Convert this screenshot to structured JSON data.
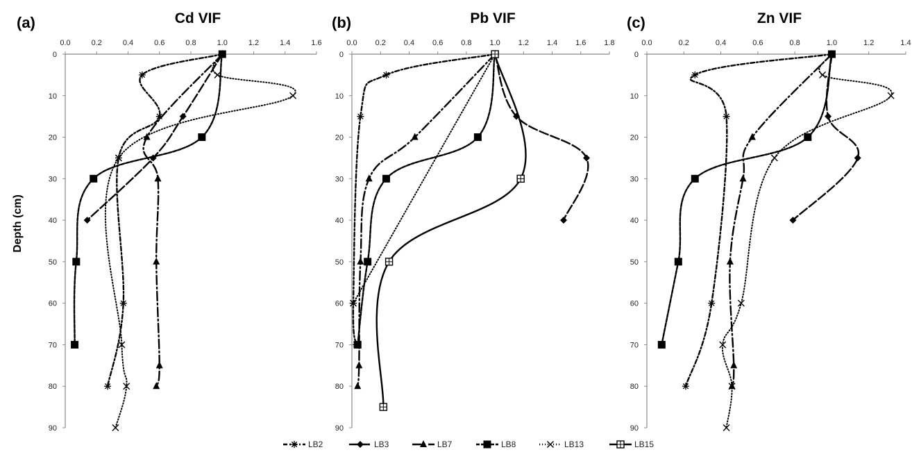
{
  "figure": {
    "ylabel": "Depth (cm)"
  },
  "chart_data": [
    {
      "type": "line",
      "panel_label": "(a)",
      "title": "Cd VIF",
      "xlim": [
        0,
        1.6
      ],
      "xticks": [
        "0.0",
        "0.2",
        "0.4",
        "0.6",
        "0.8",
        "1.0",
        "1.2",
        "1.4",
        "1.6"
      ],
      "ylim": [
        0,
        90
      ],
      "yticks": [
        "0",
        "10",
        "20",
        "30",
        "40",
        "50",
        "60",
        "70",
        "80",
        "90"
      ],
      "y_inverted": true,
      "series": [
        {
          "name": "LB2",
          "points": [
            [
              1.0,
              0
            ],
            [
              0.49,
              5
            ],
            [
              0.6,
              15
            ],
            [
              0.34,
              25
            ],
            [
              0.37,
              60
            ],
            [
              0.27,
              80
            ]
          ]
        },
        {
          "name": "LB3",
          "points": [
            [
              1.0,
              0
            ],
            [
              0.75,
              15
            ],
            [
              0.56,
              25
            ],
            [
              0.14,
              40
            ]
          ]
        },
        {
          "name": "LB7",
          "points": [
            [
              1.0,
              0
            ],
            [
              0.52,
              20
            ],
            [
              0.59,
              30
            ],
            [
              0.58,
              50
            ],
            [
              0.6,
              75
            ],
            [
              0.58,
              80
            ]
          ]
        },
        {
          "name": "LB8",
          "points": [
            [
              1.0,
              0
            ],
            [
              0.87,
              20
            ],
            [
              0.18,
              30
            ],
            [
              0.07,
              50
            ],
            [
              0.06,
              70
            ]
          ]
        },
        {
          "name": "LB13",
          "points": [
            [
              1.0,
              0
            ],
            [
              0.97,
              5
            ],
            [
              1.45,
              10
            ],
            [
              0.34,
              25
            ],
            [
              0.36,
              70
            ],
            [
              0.39,
              80
            ],
            [
              0.32,
              90
            ]
          ]
        }
      ]
    },
    {
      "type": "line",
      "panel_label": "(b)",
      "title": "Pb VIF",
      "xlim": [
        0,
        1.8
      ],
      "xticks": [
        "0.0",
        "0.2",
        "0.4",
        "0.6",
        "0.8",
        "1.0",
        "1.2",
        "1.4",
        "1.6",
        "1.8"
      ],
      "ylim": [
        0,
        90
      ],
      "yticks": [
        "0",
        "10",
        "20",
        "30",
        "40",
        "50",
        "60",
        "70",
        "80",
        "90"
      ],
      "y_inverted": true,
      "series": [
        {
          "name": "LB2",
          "points": [
            [
              1.0,
              0
            ],
            [
              0.24,
              5
            ],
            [
              0.06,
              15
            ],
            [
              0.01,
              60
            ],
            [
              0.03,
              70
            ]
          ]
        },
        {
          "name": "LB3",
          "points": [
            [
              1.0,
              0
            ],
            [
              1.15,
              15
            ],
            [
              1.64,
              25
            ],
            [
              1.48,
              40
            ]
          ]
        },
        {
          "name": "LB7",
          "points": [
            [
              1.0,
              0
            ],
            [
              0.44,
              20
            ],
            [
              0.12,
              30
            ],
            [
              0.06,
              50
            ],
            [
              0.05,
              75
            ],
            [
              0.04,
              80
            ]
          ]
        },
        {
          "name": "LB8",
          "points": [
            [
              1.0,
              0
            ],
            [
              0.88,
              20
            ],
            [
              0.24,
              30
            ],
            [
              0.11,
              50
            ],
            [
              0.04,
              70
            ]
          ]
        },
        {
          "name": "LB13",
          "points": [
            [
              1.0,
              0
            ],
            [
              0.01,
              60
            ]
          ]
        },
        {
          "name": "LB15",
          "points": [
            [
              1.0,
              0
            ],
            [
              1.18,
              30
            ],
            [
              0.26,
              50
            ],
            [
              0.22,
              85
            ]
          ]
        }
      ]
    },
    {
      "type": "line",
      "panel_label": "(c)",
      "title": "Zn VIF",
      "xlim": [
        0,
        1.4
      ],
      "xticks": [
        "0.0",
        "0.2",
        "0.4",
        "0.6",
        "0.8",
        "1.0",
        "1.2",
        "1.4"
      ],
      "ylim": [
        0,
        90
      ],
      "yticks": [
        "0",
        "10",
        "20",
        "30",
        "40",
        "50",
        "60",
        "70",
        "80",
        "90"
      ],
      "y_inverted": true,
      "series": [
        {
          "name": "LB2",
          "points": [
            [
              1.0,
              0
            ],
            [
              0.26,
              5
            ],
            [
              0.43,
              15
            ],
            [
              0.35,
              60
            ],
            [
              0.21,
              80
            ]
          ]
        },
        {
          "name": "LB3",
          "points": [
            [
              1.0,
              0
            ],
            [
              0.98,
              15
            ],
            [
              1.14,
              25
            ],
            [
              0.79,
              40
            ]
          ]
        },
        {
          "name": "LB7",
          "points": [
            [
              1.0,
              0
            ],
            [
              0.57,
              20
            ],
            [
              0.52,
              30
            ],
            [
              0.45,
              50
            ],
            [
              0.47,
              75
            ],
            [
              0.46,
              80
            ]
          ]
        },
        {
          "name": "LB8",
          "points": [
            [
              1.0,
              0
            ],
            [
              0.87,
              20
            ],
            [
              0.26,
              30
            ],
            [
              0.17,
              50
            ],
            [
              0.08,
              70
            ]
          ]
        },
        {
          "name": "LB13",
          "points": [
            [
              1.0,
              0
            ],
            [
              0.95,
              5
            ],
            [
              1.32,
              10
            ],
            [
              0.69,
              25
            ],
            [
              0.51,
              60
            ],
            [
              0.41,
              70
            ],
            [
              0.46,
              80
            ],
            [
              0.43,
              90
            ]
          ]
        }
      ]
    }
  ],
  "legend": {
    "position": "bottom-center",
    "items": [
      {
        "name": "LB2",
        "dash": "6,3,2,3",
        "marker": "star"
      },
      {
        "name": "LB3",
        "dash": "13,4",
        "marker": "diamond"
      },
      {
        "name": "LB7",
        "dash": "13,4,2,4",
        "marker": "triangle"
      },
      {
        "name": "LB8",
        "dash": "5,2",
        "marker": "square"
      },
      {
        "name": "LB13",
        "dash": "1.2,2.8",
        "marker": "x"
      },
      {
        "name": "LB15",
        "dash": "",
        "marker": "hashsquare"
      }
    ]
  }
}
